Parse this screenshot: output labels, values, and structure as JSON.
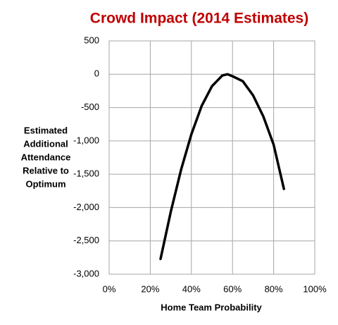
{
  "chart_data": {
    "type": "line",
    "title": "Crowd Impact (2014 Estimates)",
    "xlabel": "Home Team Probability",
    "ylabel": [
      "Estimated",
      "Additional",
      "Attendance",
      "Relative to",
      "Optimum"
    ],
    "x": [
      0.25,
      0.3,
      0.35,
      0.4,
      0.45,
      0.5,
      0.55,
      0.575,
      0.6,
      0.65,
      0.7,
      0.75,
      0.8,
      0.85
    ],
    "series": [
      {
        "name": "Crowd impact",
        "color": "#000000",
        "values": [
          -2770,
          -2060,
          -1430,
          -900,
          -475,
          -180,
          -20,
          0,
          -30,
          -105,
          -317,
          -634,
          -1057,
          -1720
        ]
      }
    ],
    "xlim": [
      0,
      1
    ],
    "xticks": [
      {
        "value": 0,
        "label": "0%"
      },
      {
        "value": 0.2,
        "label": "20%"
      },
      {
        "value": 0.4,
        "label": "40%"
      },
      {
        "value": 0.6,
        "label": "60%"
      },
      {
        "value": 0.8,
        "label": "80%"
      },
      {
        "value": 1,
        "label": "100%"
      }
    ],
    "ylim": [
      -3000,
      500
    ],
    "yticks": [
      500,
      0,
      -500,
      {
        "value": -1000,
        "label": "-1,000"
      },
      {
        "value": -1500,
        "label": "-1,500"
      },
      {
        "value": -2000,
        "label": "-2,000"
      },
      {
        "value": -2500,
        "label": "-2,500"
      },
      {
        "value": -3000,
        "label": "-3,000"
      }
    ],
    "grid": true
  }
}
